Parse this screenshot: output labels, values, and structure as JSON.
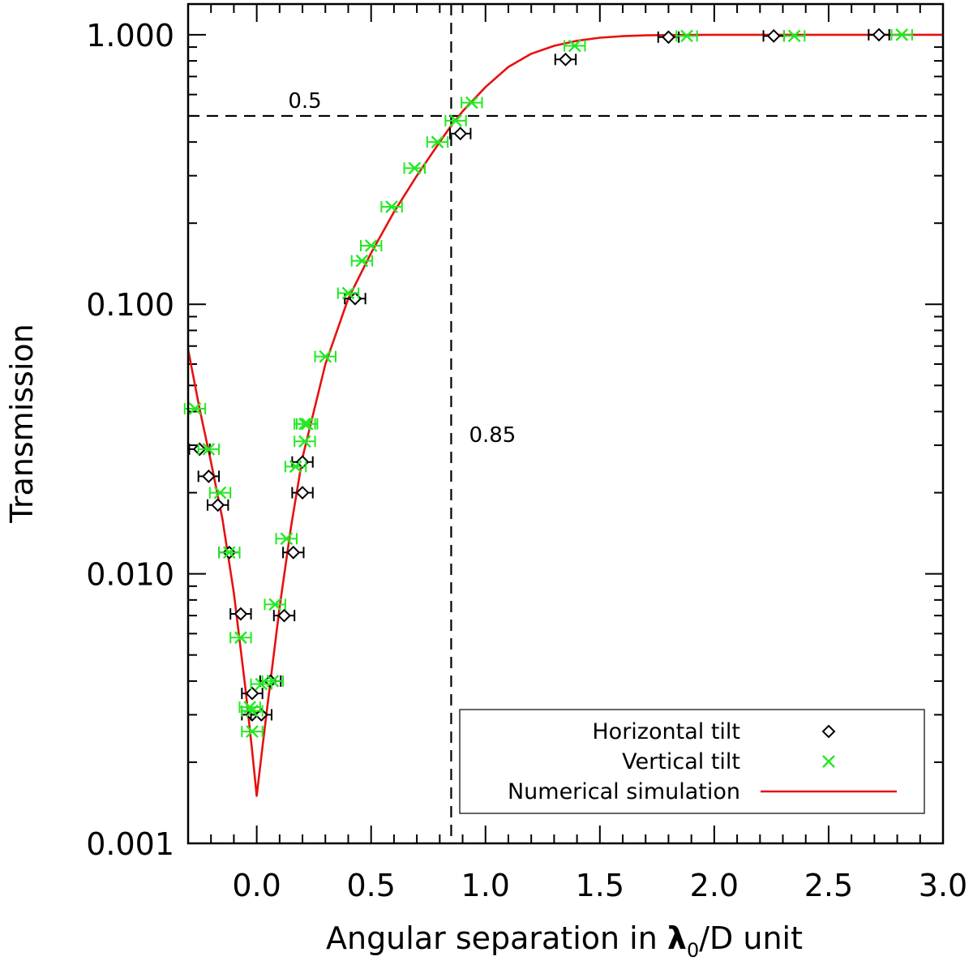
{
  "chart_data": {
    "type": "scatter",
    "title": "",
    "xlabel_prefix": "Angular separation in ",
    "xlabel_symbol": "λ",
    "xlabel_subscript": "0",
    "xlabel_suffix": "/D unit",
    "ylabel": "Transmission",
    "xlim": [
      -0.3,
      3.0
    ],
    "ylim": [
      0.001,
      1.3
    ],
    "yscale": "log",
    "x_ticks": [
      0.0,
      0.5,
      1.0,
      1.5,
      2.0,
      2.5,
      3.0
    ],
    "x_tick_labels": [
      "0.0",
      "0.5",
      "1.0",
      "1.5",
      "2.0",
      "2.5",
      "3.0"
    ],
    "y_ticks": [
      0.001,
      0.01,
      0.1,
      1.0
    ],
    "y_tick_labels": [
      "0.001",
      "0.010",
      "0.100",
      "1.000"
    ],
    "reference_lines": {
      "horizontal": {
        "y": 0.5,
        "label": "0.5"
      },
      "vertical": {
        "x": 0.85,
        "label": "0.85"
      }
    },
    "colors": {
      "horizontal_tilt": "#000000",
      "vertical_tilt": "#22e822",
      "simulation": "#e81010"
    },
    "series": [
      {
        "name": "Horizontal tilt",
        "marker": "diamond",
        "xerr": 0.045,
        "points": [
          [
            -0.25,
            0.029
          ],
          [
            -0.21,
            0.023
          ],
          [
            -0.17,
            0.018
          ],
          [
            -0.12,
            0.012
          ],
          [
            -0.07,
            0.0071
          ],
          [
            -0.02,
            0.0036
          ],
          [
            -0.02,
            0.003
          ],
          [
            0.02,
            0.003
          ],
          [
            0.06,
            0.004
          ],
          [
            0.12,
            0.007
          ],
          [
            0.16,
            0.012
          ],
          [
            0.2,
            0.02
          ],
          [
            0.2,
            0.026
          ],
          [
            0.43,
            0.105
          ],
          [
            0.89,
            0.43
          ],
          [
            1.35,
            0.81
          ],
          [
            1.8,
            0.98
          ],
          [
            2.26,
            0.99
          ],
          [
            2.72,
            1.0
          ]
        ]
      },
      {
        "name": "Vertical tilt",
        "marker": "x",
        "xerr": 0.045,
        "points": [
          [
            -0.27,
            0.041
          ],
          [
            -0.21,
            0.029
          ],
          [
            -0.16,
            0.02
          ],
          [
            -0.12,
            0.012
          ],
          [
            -0.07,
            0.0058
          ],
          [
            -0.03,
            0.0032
          ],
          [
            -0.02,
            0.0026
          ],
          [
            -0.02,
            0.0031
          ],
          [
            0.02,
            0.0039
          ],
          [
            0.07,
            0.004
          ],
          [
            0.08,
            0.0077
          ],
          [
            0.13,
            0.0135
          ],
          [
            0.17,
            0.025
          ],
          [
            0.21,
            0.031
          ],
          [
            0.21,
            0.036
          ],
          [
            0.22,
            0.036
          ],
          [
            0.3,
            0.064
          ],
          [
            0.4,
            0.11
          ],
          [
            0.46,
            0.145
          ],
          [
            0.5,
            0.165
          ],
          [
            0.59,
            0.23
          ],
          [
            0.69,
            0.32
          ],
          [
            0.79,
            0.4
          ],
          [
            0.87,
            0.48
          ],
          [
            0.94,
            0.56
          ],
          [
            1.39,
            0.91
          ],
          [
            1.88,
            0.99
          ],
          [
            2.35,
            0.99
          ],
          [
            2.82,
            1.0
          ]
        ]
      },
      {
        "name": "Numerical simulation",
        "marker": "line",
        "x": [
          -0.3,
          -0.25,
          -0.2,
          -0.15,
          -0.1,
          -0.05,
          -0.02,
          0.0,
          0.02,
          0.05,
          0.1,
          0.15,
          0.2,
          0.3,
          0.4,
          0.5,
          0.6,
          0.7,
          0.8,
          0.85,
          0.9,
          1.0,
          1.1,
          1.2,
          1.3,
          1.4,
          1.5,
          1.6,
          1.7,
          1.8,
          2.0,
          2.5,
          3.0
        ],
        "y": [
          0.068,
          0.041,
          0.026,
          0.016,
          0.0085,
          0.0038,
          0.0022,
          0.0015,
          0.0021,
          0.0034,
          0.0075,
          0.015,
          0.027,
          0.06,
          0.105,
          0.155,
          0.22,
          0.3,
          0.4,
          0.46,
          0.52,
          0.64,
          0.76,
          0.85,
          0.91,
          0.95,
          0.975,
          0.988,
          0.995,
          0.998,
          1.0,
          1.0,
          1.0
        ]
      }
    ],
    "legend": {
      "position": "bottom-right",
      "entries": [
        "Horizontal tilt",
        "Vertical tilt",
        "Numerical simulation"
      ]
    }
  }
}
